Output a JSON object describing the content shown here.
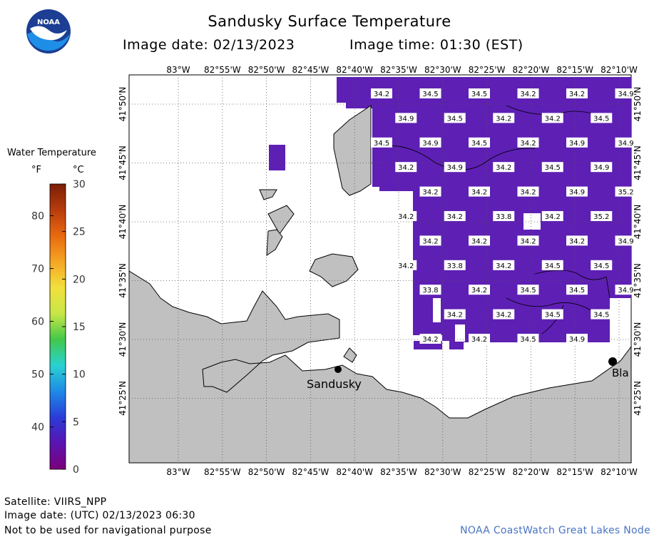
{
  "header": {
    "title": "Sandusky Surface Temperature",
    "image_date_label": "Image date: 02/13/2023",
    "image_time_label": "Image time: 01:30 (EST)",
    "logo_text": "NOAA"
  },
  "legend": {
    "title": "Water Temperature",
    "unit_f": "°F",
    "unit_c": "°C",
    "f_ticks": [
      {
        "v": 40,
        "label": "40"
      },
      {
        "v": 50,
        "label": "50"
      },
      {
        "v": 60,
        "label": "60"
      },
      {
        "v": 70,
        "label": "70"
      },
      {
        "v": 80,
        "label": "80"
      }
    ],
    "c_ticks": [
      {
        "v": 0,
        "label": "0"
      },
      {
        "v": 5,
        "label": "5"
      },
      {
        "v": 10,
        "label": "10"
      },
      {
        "v": 15,
        "label": "15"
      },
      {
        "v": 20,
        "label": "20"
      },
      {
        "v": 25,
        "label": "25"
      },
      {
        "v": 30,
        "label": "30"
      }
    ],
    "c_range": [
      0,
      30
    ],
    "colors": [
      "#7a007a",
      "#5a14b0",
      "#2a3cd8",
      "#1e8ae6",
      "#2ad2d2",
      "#42c84a",
      "#c8e646",
      "#f2e03e",
      "#f5a623",
      "#e86a10",
      "#b83c0c",
      "#7a1e08"
    ]
  },
  "map": {
    "lon_labels": [
      "83°W",
      "82°55'W",
      "82°50'W",
      "82°45'W",
      "82°40'W",
      "82°35'W",
      "82°30'W",
      "82°25'W",
      "82°20'W",
      "82°15'W",
      "82°10'W"
    ],
    "lat_labels": [
      "41°50'N",
      "41°45'N",
      "41°40'N",
      "41°35'N",
      "41°30'N",
      "41°25'N"
    ],
    "city_sandusky": "Sandusky",
    "city_partial": "Bla",
    "water_color": "#5e1fb4",
    "land_color": "#c0c0c0",
    "temps": [
      {
        "col": 0,
        "row": 0,
        "t": "34.2"
      },
      {
        "col": 1,
        "row": 0,
        "t": "34.5"
      },
      {
        "col": 2,
        "row": 0,
        "t": "34.5"
      },
      {
        "col": 3,
        "row": 0,
        "t": "34.2"
      },
      {
        "col": 4,
        "row": 0,
        "t": "34.2"
      },
      {
        "col": 5,
        "row": 0,
        "t": "34.9"
      },
      {
        "col": 0.5,
        "row": 1,
        "t": "34.9"
      },
      {
        "col": 1.5,
        "row": 1,
        "t": "34.5"
      },
      {
        "col": 2.5,
        "row": 1,
        "t": "34.2"
      },
      {
        "col": 3.5,
        "row": 1,
        "t": "34.2"
      },
      {
        "col": 4.5,
        "row": 1,
        "t": "34.5"
      },
      {
        "col": 0,
        "row": 2,
        "t": "34.5"
      },
      {
        "col": 1,
        "row": 2,
        "t": "34.9"
      },
      {
        "col": 2,
        "row": 2,
        "t": "34.5"
      },
      {
        "col": 3,
        "row": 2,
        "t": "34.2"
      },
      {
        "col": 4,
        "row": 2,
        "t": "34.9"
      },
      {
        "col": 5,
        "row": 2,
        "t": "34.9"
      },
      {
        "col": 0.5,
        "row": 3,
        "t": "34.2"
      },
      {
        "col": 1.5,
        "row": 3,
        "t": "34.9"
      },
      {
        "col": 2.5,
        "row": 3,
        "t": "34.2"
      },
      {
        "col": 3.5,
        "row": 3,
        "t": "34.5"
      },
      {
        "col": 4.5,
        "row": 3,
        "t": "34.9"
      },
      {
        "col": 1,
        "row": 4,
        "t": "34.2"
      },
      {
        "col": 2,
        "row": 4,
        "t": "34.2"
      },
      {
        "col": 3,
        "row": 4,
        "t": "34.2"
      },
      {
        "col": 4,
        "row": 4,
        "t": "34.9"
      },
      {
        "col": 5,
        "row": 4,
        "t": "35.2"
      },
      {
        "col": 0.5,
        "row": 5,
        "t": "34.2"
      },
      {
        "col": 1.5,
        "row": 5,
        "t": "34.2"
      },
      {
        "col": 2.5,
        "row": 5,
        "t": "33.8"
      },
      {
        "col": 3.5,
        "row": 5,
        "t": "34.2"
      },
      {
        "col": 4.5,
        "row": 5,
        "t": "35.2"
      },
      {
        "col": 1,
        "row": 6,
        "t": "34.2"
      },
      {
        "col": 2,
        "row": 6,
        "t": "34.2"
      },
      {
        "col": 3,
        "row": 6,
        "t": "34.2"
      },
      {
        "col": 4,
        "row": 6,
        "t": "34.2"
      },
      {
        "col": 5,
        "row": 6,
        "t": "34.9"
      },
      {
        "col": 0.5,
        "row": 7,
        "t": "34.2"
      },
      {
        "col": 1.5,
        "row": 7,
        "t": "33.8"
      },
      {
        "col": 2.5,
        "row": 7,
        "t": "34.2"
      },
      {
        "col": 3.5,
        "row": 7,
        "t": "34.5"
      },
      {
        "col": 4.5,
        "row": 7,
        "t": "34.5"
      },
      {
        "col": 1,
        "row": 8,
        "t": "33.8"
      },
      {
        "col": 2,
        "row": 8,
        "t": "34.2"
      },
      {
        "col": 3,
        "row": 8,
        "t": "34.5"
      },
      {
        "col": 4,
        "row": 8,
        "t": "34.5"
      },
      {
        "col": 5,
        "row": 8,
        "t": "34.9"
      },
      {
        "col": 1.5,
        "row": 9,
        "t": "34.2"
      },
      {
        "col": 2.5,
        "row": 9,
        "t": "34.2"
      },
      {
        "col": 3.5,
        "row": 9,
        "t": "34.5"
      },
      {
        "col": 4.5,
        "row": 9,
        "t": "34.5"
      },
      {
        "col": 1,
        "row": 10,
        "t": "34.2"
      },
      {
        "col": 2,
        "row": 10,
        "t": "34.2"
      },
      {
        "col": 3,
        "row": 10,
        "t": "34.5"
      },
      {
        "col": 4,
        "row": 10,
        "t": "34.9"
      }
    ]
  },
  "footer": {
    "satellite": "Satellite: VIIRS_NPP",
    "utc_date": "Image date: (UTC) 02/13/2023  06:30",
    "disclaimer": "Not to be used for navigational purpose",
    "credit": "NOAA CoastWatch Great Lakes Node"
  }
}
